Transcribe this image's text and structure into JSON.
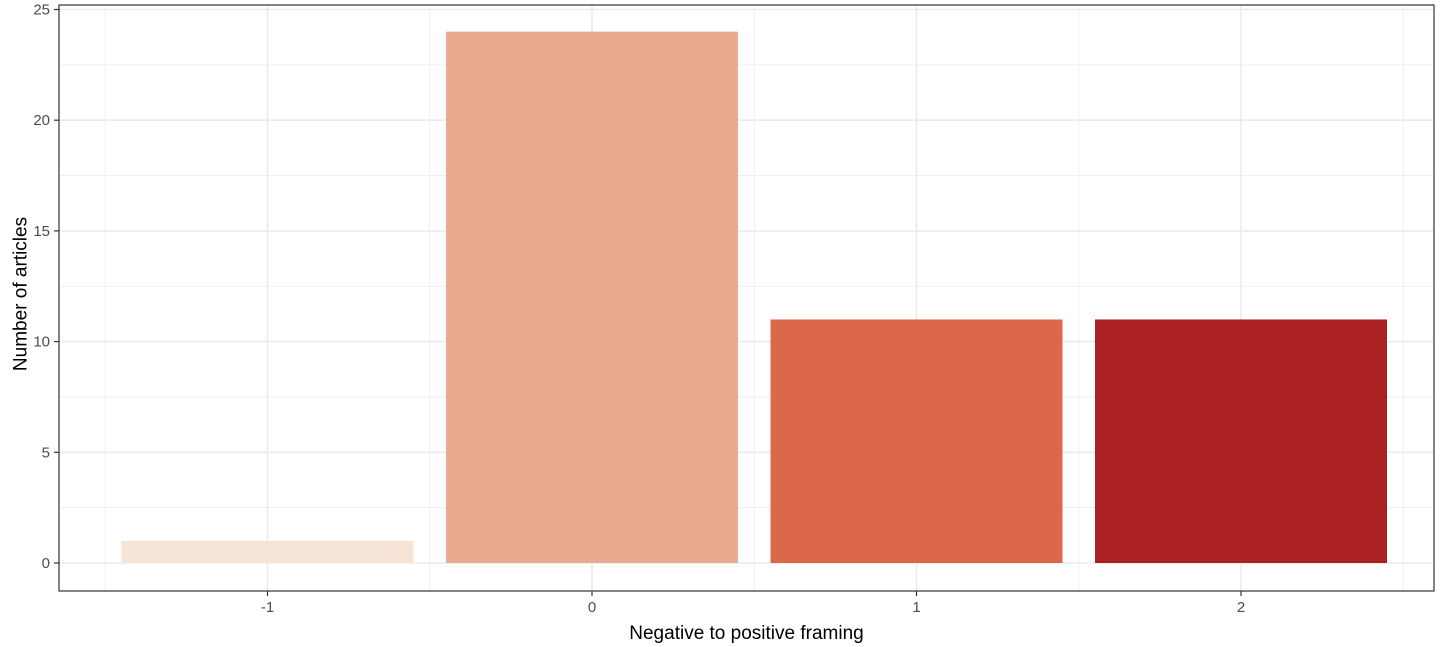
{
  "chart_data": {
    "type": "bar",
    "title": "",
    "xlabel": "Negative to positive framing",
    "ylabel": "Number of articles",
    "categories": [
      "-1",
      "0",
      "1",
      "2"
    ],
    "values": [
      1,
      24,
      11,
      11
    ],
    "colors": [
      "#f6e4d6",
      "#e8ab8f",
      "#dc684c",
      "#ab2121"
    ],
    "ylim": [
      0,
      25
    ],
    "yticks": [
      0,
      5,
      10,
      15,
      20,
      25
    ],
    "grid": true,
    "legend": "none",
    "panel_border_color": "#333333",
    "grid_color": "#ebebeb"
  }
}
